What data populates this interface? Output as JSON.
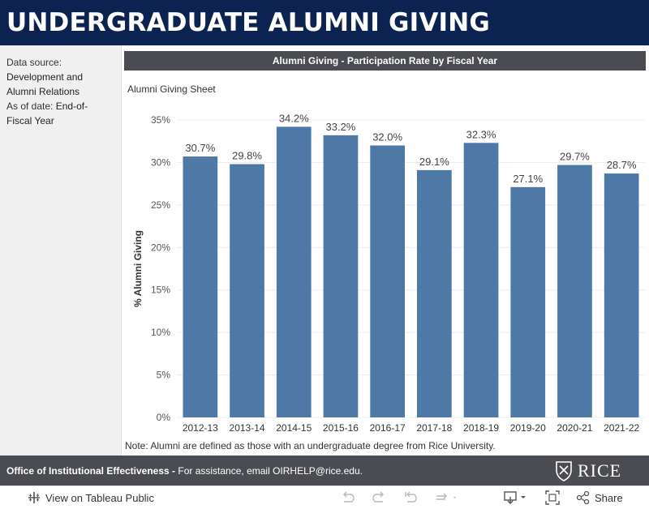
{
  "header": {
    "title": "UNDERGRADUATE ALUMNI GIVING"
  },
  "sidebar": {
    "source_label": "Data source:",
    "source_value_line1": "Development and",
    "source_value_line2": "Alumni Relations",
    "asof_label": "As of date:",
    "asof_value_part1": "End-of-",
    "asof_value_part2": "Fiscal Year"
  },
  "chart_header": "Alumni Giving - Participation Rate by Fiscal Year",
  "sheet_title": "Alumni Giving Sheet",
  "note": "Note: Alumni are defined as those with an undergraduate degree from Rice University.",
  "footer": {
    "office": "Office of Institutional Effectiveness -",
    "assist": "For assistance, email OIRHELP@rice.edu.",
    "logo_text": "RICE"
  },
  "toolbar": {
    "view_label": "View on Tableau Public",
    "share_label": "Share"
  },
  "colors": {
    "header_bg": "#0c2250",
    "bar": "#4e79a7",
    "bar_header": "#4a4c52",
    "footer_bg": "#4a4c52"
  },
  "chart_data": {
    "type": "bar",
    "title": "Alumni Giving - Participation Rate by Fiscal Year",
    "xlabel": "",
    "ylabel": "% Alumni Giving",
    "ylim": [
      0,
      35
    ],
    "yticks": [
      0,
      5,
      10,
      15,
      20,
      25,
      30,
      35
    ],
    "ytick_labels": [
      "0%",
      "5%",
      "10%",
      "15%",
      "20%",
      "25%",
      "30%",
      "35%"
    ],
    "categories": [
      "2012-13",
      "2013-14",
      "2014-15",
      "2015-16",
      "2016-17",
      "2017-18",
      "2018-19",
      "2019-20",
      "2020-21",
      "2021-22"
    ],
    "values": [
      30.7,
      29.8,
      34.2,
      33.2,
      32.0,
      29.1,
      32.3,
      27.1,
      29.7,
      28.7
    ],
    "value_labels": [
      "30.7%",
      "29.8%",
      "34.2%",
      "33.2%",
      "32.0%",
      "29.1%",
      "32.3%",
      "27.1%",
      "29.7%",
      "28.7%"
    ]
  }
}
